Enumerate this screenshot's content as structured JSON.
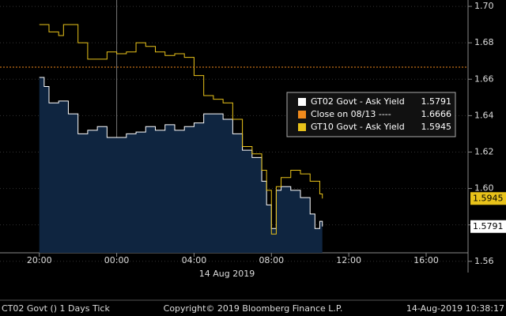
{
  "chart_data": {
    "type": "line",
    "xlim": [
      "2019-08-13T17:58",
      "2019-08-14T18:10"
    ],
    "xticks": [
      {
        "value": "2019-08-13T20:00",
        "label": "20:00"
      },
      {
        "value": "2019-08-14T00:00",
        "label": "00:00"
      },
      {
        "value": "2019-08-14T04:00",
        "label": "04:00"
      },
      {
        "value": "2019-08-14T08:00",
        "label": "08:00"
      },
      {
        "value": "2019-08-14T12:00",
        "label": "12:00"
      },
      {
        "value": "2019-08-14T16:00",
        "label": "16:00"
      }
    ],
    "date_label": "14 Aug 2019",
    "ylim": [
      1.556,
      1.7035
    ],
    "yticks": [
      1.56,
      1.58,
      {
        "value": 1.6,
        "label": "1.60"
      },
      1.62,
      1.64,
      1.66,
      1.68,
      {
        "value": 1.7,
        "label": "1.70"
      }
    ],
    "grid": true,
    "series": [
      {
        "name": "GT02 Govt - Ask Yield",
        "color": "#ffffff",
        "fill": "#0f2540",
        "x": [
          "2019-08-13T20:00",
          "2019-08-13T20:15",
          "2019-08-13T20:30",
          "2019-08-13T21:00",
          "2019-08-13T21:30",
          "2019-08-13T22:00",
          "2019-08-13T22:30",
          "2019-08-13T23:00",
          "2019-08-13T23:30",
          "2019-08-14T00:00",
          "2019-08-14T00:30",
          "2019-08-14T01:00",
          "2019-08-14T01:30",
          "2019-08-14T02:00",
          "2019-08-14T02:30",
          "2019-08-14T03:00",
          "2019-08-14T03:30",
          "2019-08-14T04:00",
          "2019-08-14T04:30",
          "2019-08-14T05:00",
          "2019-08-14T05:30",
          "2019-08-14T06:00",
          "2019-08-14T06:30",
          "2019-08-14T07:00",
          "2019-08-14T07:30",
          "2019-08-14T07:45",
          "2019-08-14T08:00",
          "2019-08-14T08:15",
          "2019-08-14T08:30",
          "2019-08-14T09:00",
          "2019-08-14T09:30",
          "2019-08-14T10:00",
          "2019-08-14T10:15",
          "2019-08-14T10:30",
          "2019-08-14T10:38"
        ],
        "values": [
          1.661,
          1.656,
          1.647,
          1.648,
          1.641,
          1.63,
          1.632,
          1.634,
          1.628,
          1.628,
          1.63,
          1.631,
          1.634,
          1.632,
          1.635,
          1.632,
          1.634,
          1.636,
          1.641,
          1.641,
          1.638,
          1.63,
          1.621,
          1.617,
          1.604,
          1.591,
          1.578,
          1.599,
          1.601,
          1.599,
          1.595,
          1.586,
          1.578,
          1.582,
          1.5791
        ]
      },
      {
        "name": "GT10 Govt - Ask Yield",
        "color": "#e8c21a",
        "x": [
          "2019-08-13T20:00",
          "2019-08-13T20:30",
          "2019-08-13T21:00",
          "2019-08-13T21:15",
          "2019-08-13T22:00",
          "2019-08-13T22:30",
          "2019-08-13T23:00",
          "2019-08-13T23:30",
          "2019-08-14T00:00",
          "2019-08-14T00:30",
          "2019-08-14T01:00",
          "2019-08-14T01:30",
          "2019-08-14T02:00",
          "2019-08-14T02:30",
          "2019-08-14T03:00",
          "2019-08-14T03:30",
          "2019-08-14T04:00",
          "2019-08-14T04:30",
          "2019-08-14T05:00",
          "2019-08-14T05:30",
          "2019-08-14T06:00",
          "2019-08-14T06:30",
          "2019-08-14T07:00",
          "2019-08-14T07:30",
          "2019-08-14T07:45",
          "2019-08-14T08:00",
          "2019-08-14T08:15",
          "2019-08-14T08:30",
          "2019-08-14T09:00",
          "2019-08-14T09:30",
          "2019-08-14T10:00",
          "2019-08-14T10:30",
          "2019-08-14T10:38"
        ],
        "values": [
          1.69,
          1.686,
          1.684,
          1.69,
          1.68,
          1.671,
          1.671,
          1.675,
          1.674,
          1.675,
          1.68,
          1.678,
          1.675,
          1.673,
          1.674,
          1.672,
          1.662,
          1.651,
          1.649,
          1.647,
          1.638,
          1.623,
          1.619,
          1.61,
          1.599,
          1.575,
          1.601,
          1.606,
          1.61,
          1.608,
          1.604,
          1.597,
          1.5945
        ]
      }
    ],
    "reference": {
      "name": "Close on 08/13 ----",
      "value": 1.6666,
      "color": "#f08a1c"
    },
    "footer": {
      "left": "CT02 Govt () 1 Days  Tick",
      "center": "Copyright© 2019 Bloomberg Finance L.P.",
      "right": "14-Aug-2019 10:38:17"
    }
  }
}
